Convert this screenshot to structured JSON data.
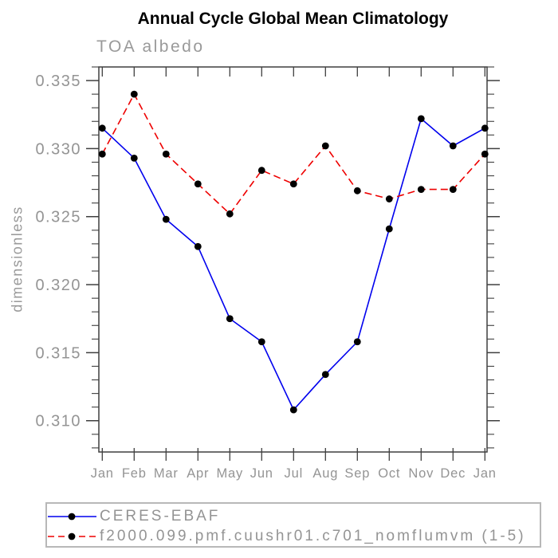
{
  "header": {
    "title": "Annual Cycle Global Mean Climatology",
    "subtitle": "TOA albedo"
  },
  "chart_data": {
    "type": "line",
    "title": "Annual Cycle Global Mean Climatology",
    "subtitle": "TOA albedo",
    "xlabel": "",
    "ylabel": "dimensionless",
    "categories": [
      "Jan",
      "Feb",
      "Mar",
      "Apr",
      "May",
      "Jun",
      "Jul",
      "Aug",
      "Sep",
      "Oct",
      "Nov",
      "Dec",
      "Jan"
    ],
    "ylim": [
      0.3077,
      0.336
    ],
    "yticks_major": [
      0.31,
      0.315,
      0.32,
      0.325,
      0.33,
      0.335
    ],
    "ytick_labels": [
      "0.310",
      "0.315",
      "0.320",
      "0.325",
      "0.330",
      "0.335"
    ],
    "y_minor_step": 0.001,
    "grid": false,
    "legend_position": "bottom-left",
    "series": [
      {
        "name": "CERES-EBAF",
        "color": "#0000ee",
        "style": "solid",
        "marker": "circle",
        "marker_color": "#000000",
        "values": [
          0.3315,
          0.3293,
          0.3248,
          0.3228,
          0.3175,
          0.3158,
          0.3108,
          0.3134,
          0.3158,
          0.3241,
          0.3322,
          0.3302,
          0.3315
        ]
      },
      {
        "name": "f2000.099.pmf.cuushr01.c701_nomflumvm (1-5)",
        "color": "#ee0000",
        "style": "dashed",
        "marker": "circle",
        "marker_color": "#000000",
        "values": [
          0.3296,
          0.334,
          0.3296,
          0.3274,
          0.3252,
          0.3284,
          0.3274,
          0.3302,
          0.3269,
          0.3263,
          0.327,
          0.327,
          0.3296
        ]
      }
    ],
    "colors": {
      "axis": "#3f3f3f",
      "tick_label": "#949494",
      "title": "#000000",
      "legend_border": "#b8b8b8"
    }
  }
}
